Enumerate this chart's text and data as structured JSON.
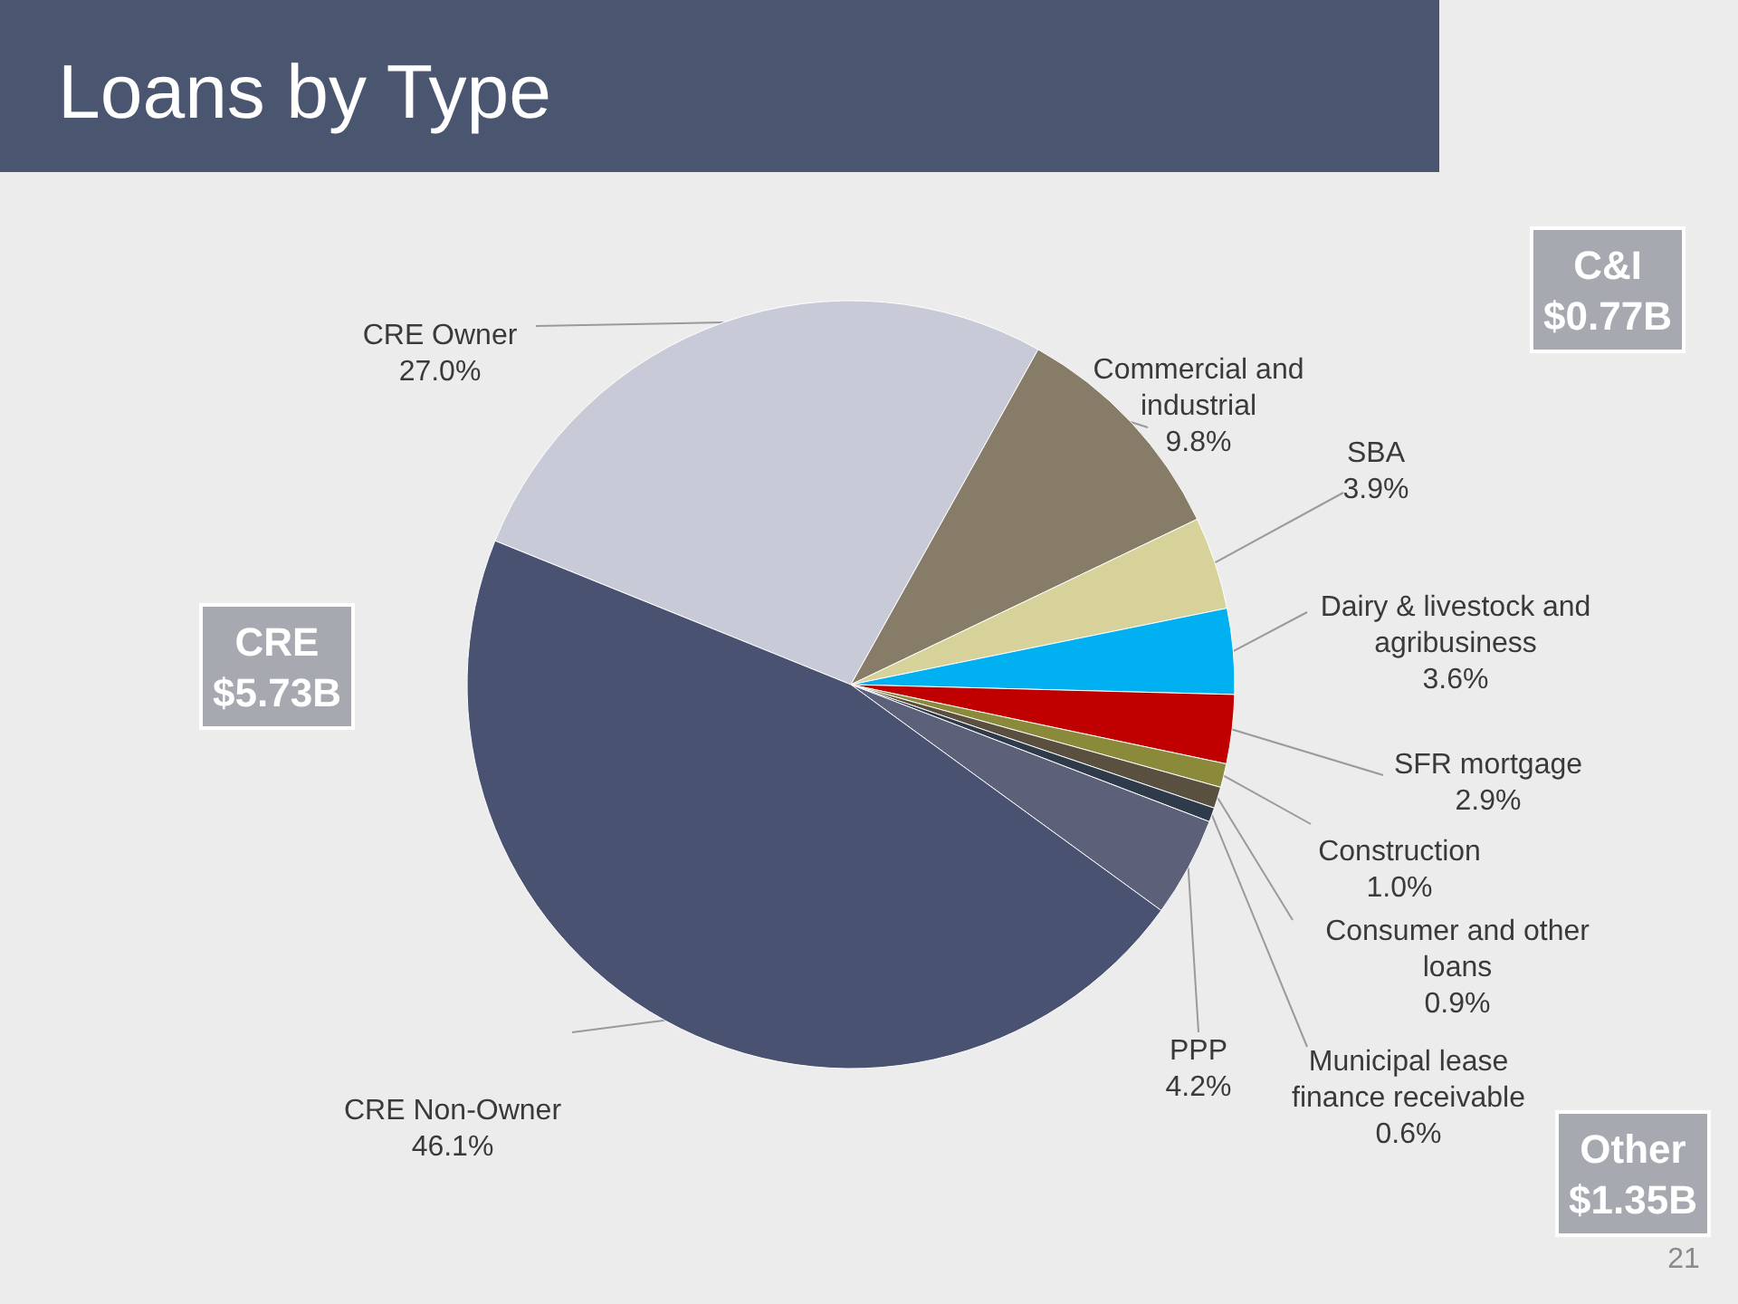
{
  "chart_data": {
    "type": "pie",
    "title": "Loans by Type",
    "categories": [
      "CRE Owner",
      "Commercial and industrial",
      "SBA",
      "Dairy & livestock and agribusiness",
      "SFR mortgage",
      "Construction",
      "Consumer and other loans",
      "Municipal lease finance receivable",
      "PPP",
      "CRE Non-Owner"
    ],
    "values": [
      27.0,
      9.8,
      3.9,
      3.6,
      2.9,
      1.0,
      0.9,
      0.6,
      4.2,
      46.1
    ],
    "value_labels": [
      "27.0%",
      "9.8%",
      "3.9%",
      "3.6%",
      "2.9%",
      "1.0%",
      "0.9%",
      "0.6%",
      "4.2%",
      "46.1%"
    ],
    "colors": [
      "#c9cad8",
      "#877c68",
      "#d7d29a",
      "#00b0f0",
      "#c00000",
      "#8a8a3a",
      "#5a5040",
      "#2f3a4a",
      "#5c6078",
      "#4a5272"
    ],
    "annotations": [
      "CRE\n$5.73B",
      "C&I\n$0.77B",
      "Other\n$1.35B",
      "21"
    ]
  }
}
